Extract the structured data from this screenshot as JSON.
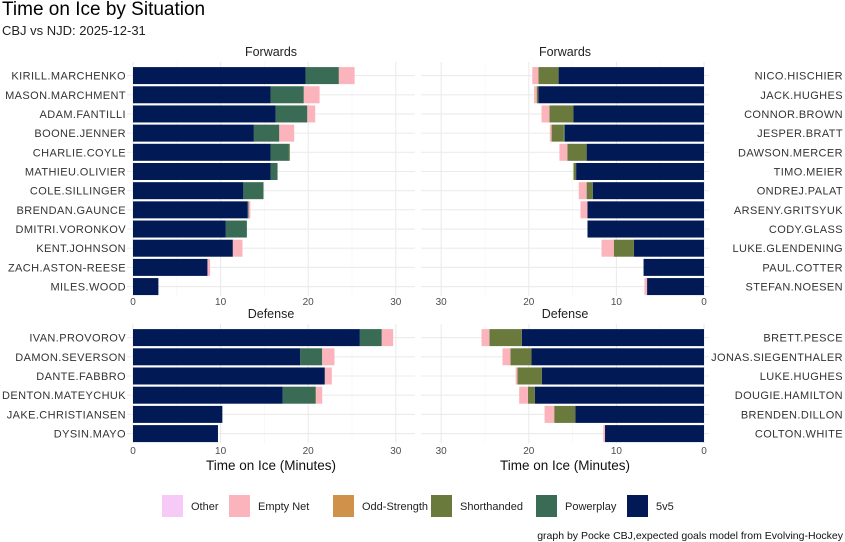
{
  "title": "Time on Ice by Situation",
  "subtitle": "CBJ vs NJD: 2025-12-31",
  "caption": "graph by Pocke CBJ,expected goals model from Evolving-Hockey",
  "chart_data": {
    "type": "bar",
    "orientation": "horizontal-stacked",
    "xlabel": "Time on Ice (Minutes)",
    "xlim": [
      0,
      32
    ],
    "xticks": [
      0,
      10,
      20,
      30
    ],
    "grid": true,
    "legend_position": "bottom",
    "segments": [
      "5v5",
      "Powerplay",
      "Shorthanded",
      "Odd-Strength",
      "Empty Net",
      "Other"
    ],
    "legend": [
      {
        "label": "Other",
        "color": "#F6C9F6"
      },
      {
        "label": "Empty Net",
        "color": "#FBB4BC"
      },
      {
        "label": "Odd-Strength",
        "color": "#D0924A"
      },
      {
        "label": "Shorthanded",
        "color": "#6A7A3C"
      },
      {
        "label": "Powerplay",
        "color": "#3A6B55"
      },
      {
        "label": "5v5",
        "color": "#011A55"
      }
    ],
    "panels": [
      {
        "strip": "Forwards",
        "side": "left",
        "players": [
          {
            "name": "KIRILL.MARCHENKO",
            "v": [
              19.7,
              3.8,
              0,
              0,
              1.8,
              0
            ]
          },
          {
            "name": "MASON.MARCHMENT",
            "v": [
              15.7,
              3.8,
              0,
              0,
              1.8,
              0
            ]
          },
          {
            "name": "ADAM.FANTILLI",
            "v": [
              16.3,
              3.6,
              0,
              0,
              0.9,
              0
            ]
          },
          {
            "name": "BOONE.JENNER",
            "v": [
              13.8,
              2.9,
              0,
              0,
              1.7,
              0
            ]
          },
          {
            "name": "CHARLIE.COYLE",
            "v": [
              15.7,
              2.1,
              0.1,
              0,
              0,
              0
            ]
          },
          {
            "name": "MATHIEU.OLIVIER",
            "v": [
              15.7,
              0.8,
              0,
              0,
              0,
              0
            ]
          },
          {
            "name": "COLE.SILLINGER",
            "v": [
              12.6,
              2.3,
              0,
              0,
              0,
              0
            ]
          },
          {
            "name": "BRENDAN.GAUNCE",
            "v": [
              13.1,
              0.1,
              0,
              0,
              0.2,
              0
            ]
          },
          {
            "name": "DMITRI.VORONKOV",
            "v": [
              10.6,
              2.4,
              0,
              0,
              0,
              0
            ]
          },
          {
            "name": "KENT.JOHNSON",
            "v": [
              11.4,
              0,
              0,
              0,
              1.1,
              0
            ]
          },
          {
            "name": "ZACH.ASTON-REESE",
            "v": [
              8.5,
              0,
              0,
              0,
              0.3,
              0
            ]
          },
          {
            "name": "MILES.WOOD",
            "v": [
              2.9,
              0,
              0,
              0,
              0,
              0
            ]
          }
        ]
      },
      {
        "strip": "Forwards",
        "side": "right",
        "players": [
          {
            "name": "NICO.HISCHIER",
            "v": [
              16.6,
              0,
              2.3,
              0,
              0.7,
              0
            ]
          },
          {
            "name": "JACK.HUGHES",
            "v": [
              18.9,
              0,
              0.2,
              0,
              0.3,
              0
            ]
          },
          {
            "name": "CONNOR.BROWN",
            "v": [
              14.9,
              0,
              2.75,
              0,
              0.9,
              0
            ]
          },
          {
            "name": "JESPER.BRATT",
            "v": [
              15.9,
              0.1,
              1.4,
              0,
              0.2,
              0
            ]
          },
          {
            "name": "DAWSON.MERCER",
            "v": [
              13.4,
              0,
              2.2,
              0,
              0.9,
              0
            ]
          },
          {
            "name": "TIMO.MEIER",
            "v": [
              14.6,
              0,
              0.3,
              0,
              0,
              0
            ]
          },
          {
            "name": "ONDREJ.PALAT",
            "v": [
              12.7,
              0,
              0.7,
              0,
              0.9,
              0
            ]
          },
          {
            "name": "ARSENY.GRITSYUK",
            "v": [
              13.3,
              0,
              0,
              0,
              0.8,
              0
            ]
          },
          {
            "name": "CODY.GLASS",
            "v": [
              13.3,
              0,
              0,
              0,
              0,
              0
            ]
          },
          {
            "name": "LUKE.GLENDENING",
            "v": [
              8.0,
              0,
              2.3,
              0,
              1.4,
              0
            ]
          },
          {
            "name": "PAUL.COTTER",
            "v": [
              6.9,
              0,
              0,
              0,
              0,
              0
            ]
          },
          {
            "name": "STEFAN.NOESEN",
            "v": [
              6.5,
              0,
              0,
              0,
              0.3,
              0
            ]
          }
        ]
      },
      {
        "strip": "Defense",
        "side": "left",
        "players": [
          {
            "name": "IVAN.PROVOROV",
            "v": [
              25.9,
              2.5,
              0,
              0,
              1.3,
              0
            ]
          },
          {
            "name": "DAMON.SEVERSON",
            "v": [
              19.1,
              2.5,
              0,
              0,
              1.4,
              0
            ]
          },
          {
            "name": "DANTE.FABBRO",
            "v": [
              21.9,
              0,
              0,
              0,
              0.8,
              0
            ]
          },
          {
            "name": "DENTON.MATEYCHUK",
            "v": [
              17.1,
              3.7,
              0.1,
              0,
              0.7,
              0
            ]
          },
          {
            "name": "JAKE.CHRISTIANSEN",
            "v": [
              10.2,
              0,
              0,
              0,
              0,
              0
            ]
          },
          {
            "name": "DYSIN.MAYO",
            "v": [
              9.7,
              0,
              0,
              0,
              0,
              0
            ]
          }
        ]
      },
      {
        "strip": "Defense",
        "side": "right",
        "players": [
          {
            "name": "BRETT.PESCE",
            "v": [
              20.8,
              0,
              3.7,
              0,
              0.9,
              0
            ]
          },
          {
            "name": "JONAS.SIEGENTHALER",
            "v": [
              19.7,
              0,
              2.4,
              0,
              0.9,
              0
            ]
          },
          {
            "name": "LUKE.HUGHES",
            "v": [
              18.5,
              0,
              2.8,
              0,
              0.2,
              0
            ]
          },
          {
            "name": "DOUGIE.HAMILTON",
            "v": [
              19.3,
              0,
              0.8,
              0,
              1.0,
              0
            ]
          },
          {
            "name": "BRENDEN.DILLON",
            "v": [
              14.7,
              0,
              2.4,
              0,
              1.1,
              0
            ]
          },
          {
            "name": "COLTON.WHITE",
            "v": [
              11.3,
              0,
              0,
              0,
              0.2,
              0
            ]
          }
        ]
      }
    ]
  }
}
